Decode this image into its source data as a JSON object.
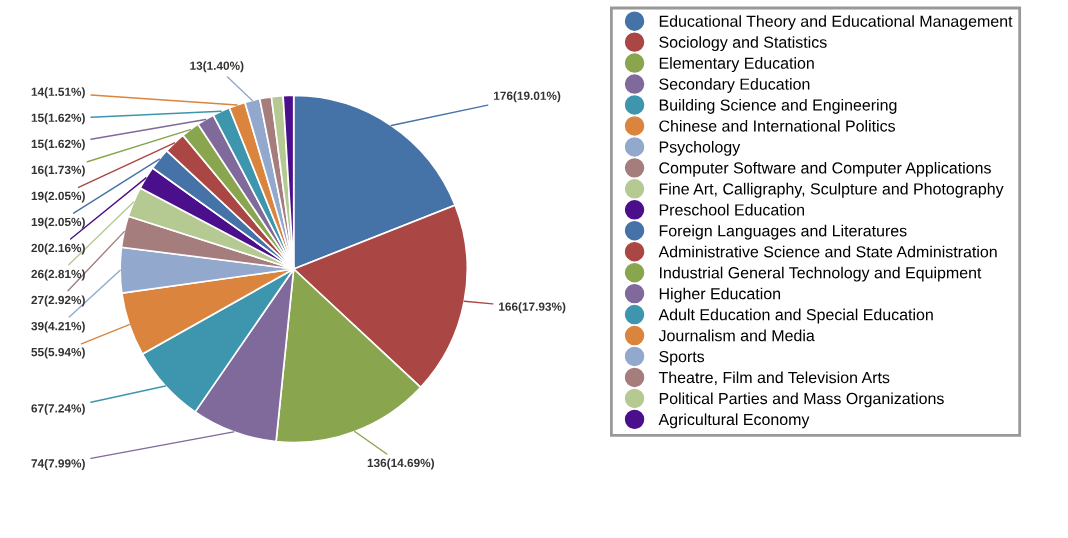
{
  "chart_data": {
    "type": "pie",
    "categories": [
      "Educational Theory and Educational Management",
      "Sociology and Statistics",
      "Elementary Education",
      "Secondary Education",
      "Building Science and Engineering",
      "Chinese and International Politics",
      "Psychology",
      "Computer Software and Computer Applications",
      "Fine Art, Calligraphy, Sculpture and Photography",
      "Preschool Education",
      "Foreign Languages and Literatures",
      "Administrative Science and State Administration",
      "Industrial General Technology and Equipment",
      "Higher Education",
      "Adult Education and Special Education",
      "Journalism and Media",
      "Sports",
      "Theatre, Film and Television Arts",
      "Political Parties and Mass Organizations",
      "Agricultural Economy"
    ],
    "values": [
      176,
      166,
      136,
      74,
      67,
      55,
      39,
      27,
      26,
      20,
      19,
      19,
      16,
      15,
      15,
      14,
      13,
      10,
      10,
      9
    ],
    "value_labels": [
      "176(19.01%)",
      "166(17.93%)",
      "136(14.69%)",
      "74(7.99%)",
      "67(7.24%)",
      "55(5.94%)",
      "39(4.21%)",
      "27(2.92%)",
      "26(2.81%)",
      "20(2.16%)",
      "19(2.05%)",
      "19(2.05%)",
      "16(1.73%)",
      "15(1.62%)",
      "15(1.62%)",
      "14(1.51%)",
      "13(1.40%)",
      null,
      null,
      null
    ],
    "colors": [
      "#4572a7",
      "#aa4643",
      "#89a54e",
      "#80699b",
      "#3d96ae",
      "#db843d",
      "#92a8cd",
      "#a47d7c",
      "#b5ca92",
      "#4b0f8c",
      "#4572a7",
      "#aa4643",
      "#89a54e",
      "#80699b",
      "#3d96ae",
      "#db843d",
      "#92a8cd",
      "#a47d7c",
      "#b5ca92",
      "#4b0f8c"
    ],
    "legend": "right"
  }
}
